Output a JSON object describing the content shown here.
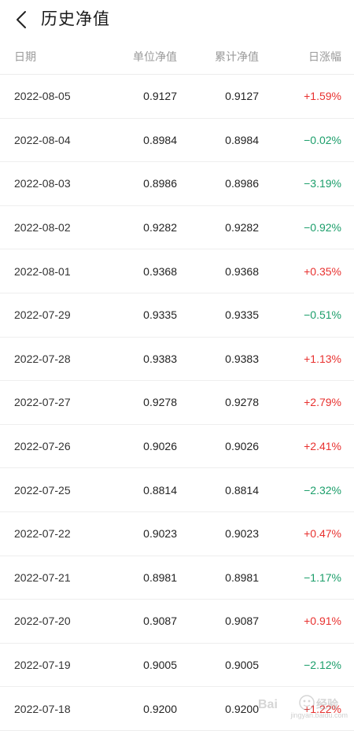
{
  "header": {
    "title": "历史净值"
  },
  "table": {
    "columns": [
      "日期",
      "单位净值",
      "累计净值",
      "日涨幅"
    ],
    "rows": [
      {
        "date": "2022-08-05",
        "unit": "0.9127",
        "acc": "0.9127",
        "chg": "+1.59%",
        "dir": "up"
      },
      {
        "date": "2022-08-04",
        "unit": "0.8984",
        "acc": "0.8984",
        "chg": "−0.02%",
        "dir": "down"
      },
      {
        "date": "2022-08-03",
        "unit": "0.8986",
        "acc": "0.8986",
        "chg": "−3.19%",
        "dir": "down"
      },
      {
        "date": "2022-08-02",
        "unit": "0.9282",
        "acc": "0.9282",
        "chg": "−0.92%",
        "dir": "down"
      },
      {
        "date": "2022-08-01",
        "unit": "0.9368",
        "acc": "0.9368",
        "chg": "+0.35%",
        "dir": "up"
      },
      {
        "date": "2022-07-29",
        "unit": "0.9335",
        "acc": "0.9335",
        "chg": "−0.51%",
        "dir": "down"
      },
      {
        "date": "2022-07-28",
        "unit": "0.9383",
        "acc": "0.9383",
        "chg": "+1.13%",
        "dir": "up"
      },
      {
        "date": "2022-07-27",
        "unit": "0.9278",
        "acc": "0.9278",
        "chg": "+2.79%",
        "dir": "up"
      },
      {
        "date": "2022-07-26",
        "unit": "0.9026",
        "acc": "0.9026",
        "chg": "+2.41%",
        "dir": "up"
      },
      {
        "date": "2022-07-25",
        "unit": "0.8814",
        "acc": "0.8814",
        "chg": "−2.32%",
        "dir": "down"
      },
      {
        "date": "2022-07-22",
        "unit": "0.9023",
        "acc": "0.9023",
        "chg": "+0.47%",
        "dir": "up"
      },
      {
        "date": "2022-07-21",
        "unit": "0.8981",
        "acc": "0.8981",
        "chg": "−1.17%",
        "dir": "down"
      },
      {
        "date": "2022-07-20",
        "unit": "0.9087",
        "acc": "0.9087",
        "chg": "+0.91%",
        "dir": "up"
      },
      {
        "date": "2022-07-19",
        "unit": "0.9005",
        "acc": "0.9005",
        "chg": "−2.12%",
        "dir": "down"
      },
      {
        "date": "2022-07-18",
        "unit": "0.9200",
        "acc": "0.9200",
        "chg": "+1.22%",
        "dir": "up"
      }
    ]
  },
  "icons": {
    "back": "chevron-left-icon"
  },
  "colors": {
    "up": "#e8312f",
    "down": "#1b9e6a",
    "header_text": "#9a9a9a"
  },
  "watermark": {
    "text": "jingyan.baidu.com"
  }
}
